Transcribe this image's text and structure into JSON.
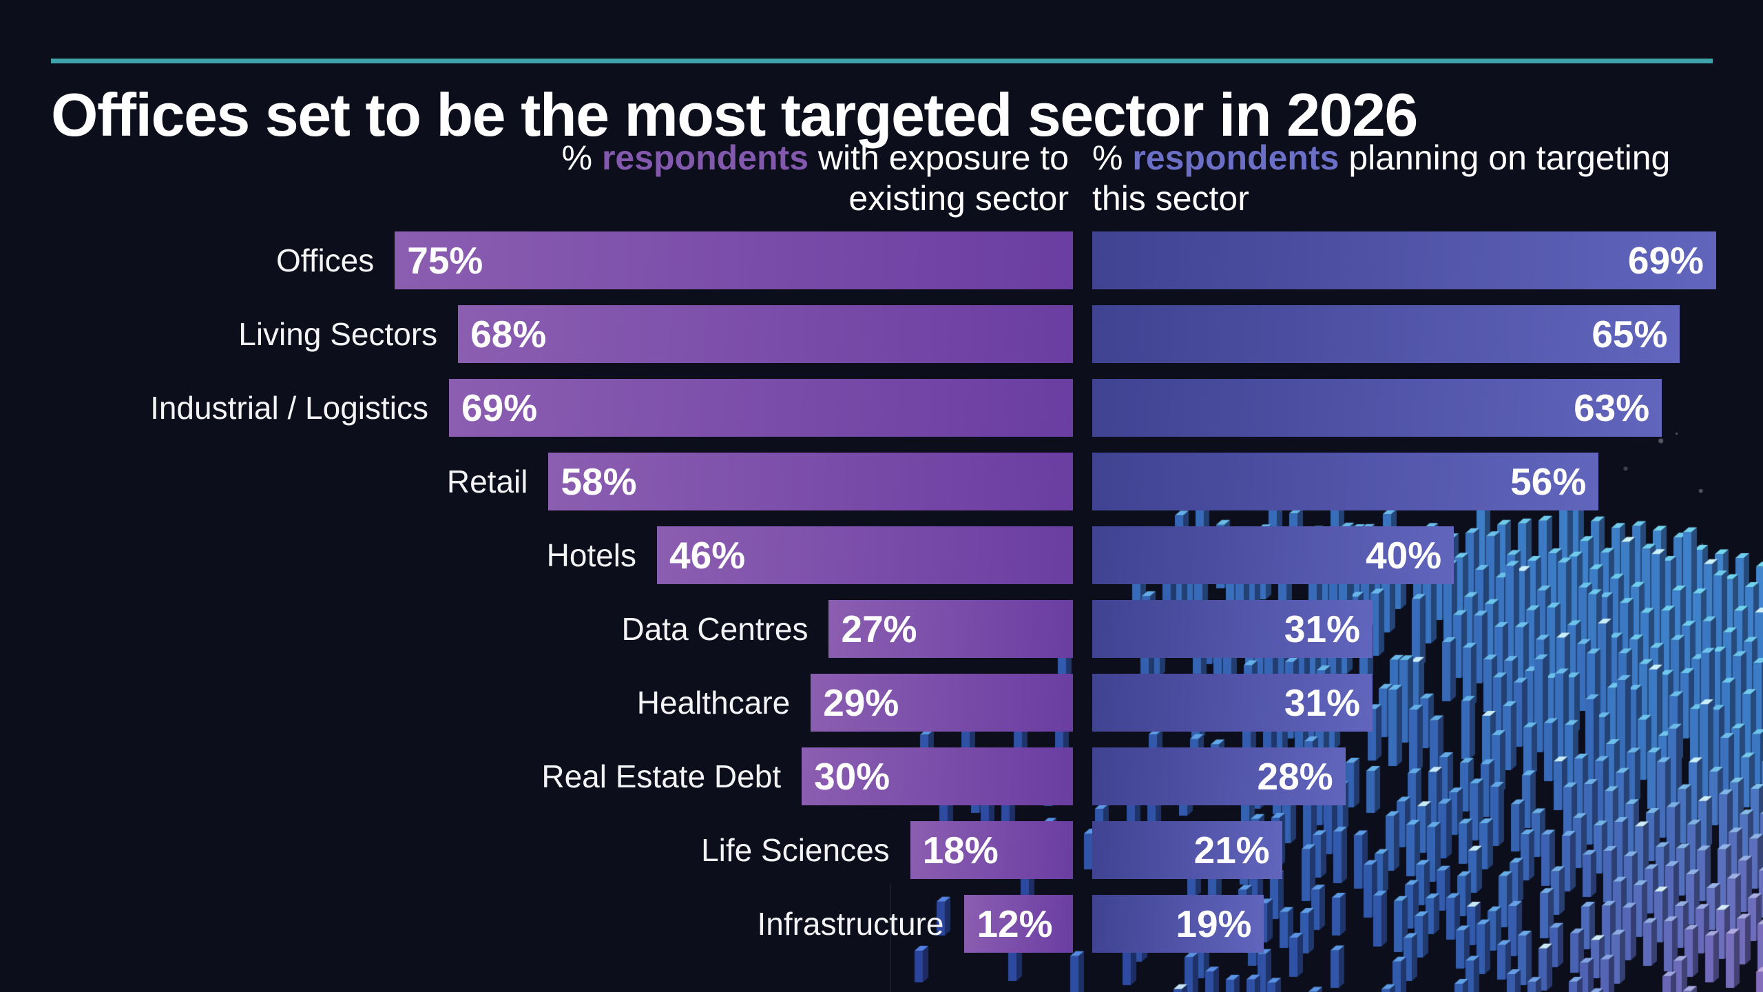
{
  "page": {
    "background_color": "#0d0e1b",
    "accent_rule_color": "#3fa3aa",
    "text_color": "#ffffff"
  },
  "title": "Offices set to be the most targeted sector in 2026",
  "column_headers": {
    "left": {
      "prefix": "% ",
      "highlight": "respondents",
      "rest": " with exposure to",
      "line2": "existing sector",
      "highlight_color": "#8259ad"
    },
    "right": {
      "prefix": "% ",
      "highlight": "respondents",
      "rest": " planning on targeting",
      "line2": "this sector",
      "highlight_color": "#6b70c6"
    }
  },
  "chart_data": {
    "type": "bar",
    "orientation": "horizontal",
    "title": "Offices set to be the most targeted sector in 2026",
    "categories": [
      "Offices",
      "Living Sectors",
      "Industrial / Logistics",
      "Retail",
      "Hotels",
      "Data Centres",
      "Healthcare",
      "Real Estate Debt",
      "Life Sciences",
      "Infrastructure"
    ],
    "series": [
      {
        "name": "% respondents with exposure to existing sector",
        "values": [
          75,
          68,
          69,
          58,
          46,
          27,
          29,
          30,
          18,
          12
        ],
        "bar_color_start": "#8b5eb1",
        "bar_color_end": "#6a3da2",
        "anchor": "right"
      },
      {
        "name": "% respondents planning on targeting this sector",
        "values": [
          69,
          65,
          63,
          56,
          40,
          31,
          31,
          28,
          21,
          19
        ],
        "bar_color_start": "#404292",
        "bar_color_end": "#6165bc",
        "anchor": "left"
      }
    ],
    "value_suffix": "%",
    "value_label_position": "inside",
    "xlim": [
      0,
      100
    ],
    "grid": false,
    "legend_position": "column-headers",
    "background_graphic": "3d-bar-landscape"
  }
}
